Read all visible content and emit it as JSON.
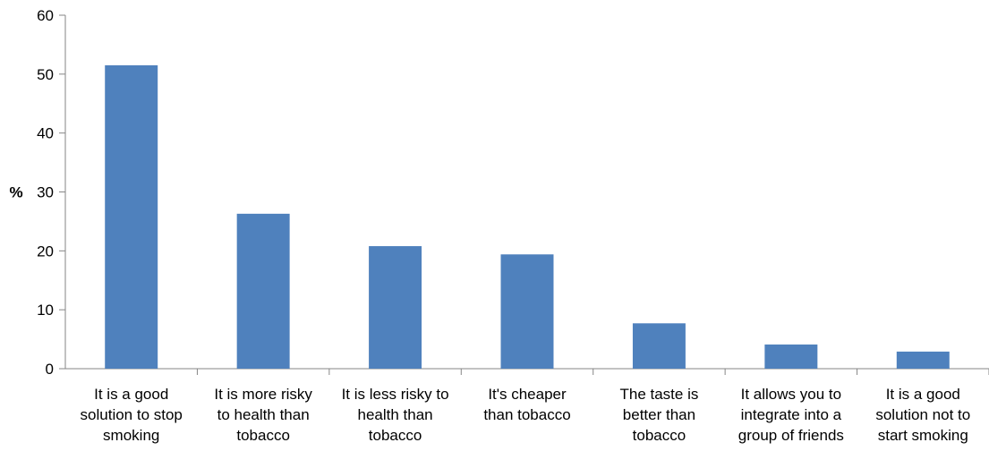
{
  "chart_data": {
    "type": "bar",
    "title": "",
    "xlabel": "",
    "ylabel": "%",
    "ylim": [
      0,
      60
    ],
    "y_ticks": [
      "0",
      "10",
      "20",
      "30",
      "40",
      "50",
      "60"
    ],
    "grid": false,
    "legend": "none",
    "bar_color": "#4F81BD",
    "categories": [
      [
        "It is a good",
        "solution to stop",
        "smoking"
      ],
      [
        "It is more risky",
        "to health than",
        "tobacco"
      ],
      [
        "It is less risky to",
        "health than",
        "tobacco"
      ],
      [
        "It's cheaper",
        "than tobacco"
      ],
      [
        "The taste is",
        "better than",
        "tobacco"
      ],
      [
        "It allows you to",
        "integrate into a",
        "group of friends"
      ],
      [
        "It is a good",
        "solution not to",
        "start smoking"
      ]
    ],
    "values": [
      51.5,
      26.3,
      20.8,
      19.4,
      7.7,
      4.1,
      2.9
    ]
  }
}
